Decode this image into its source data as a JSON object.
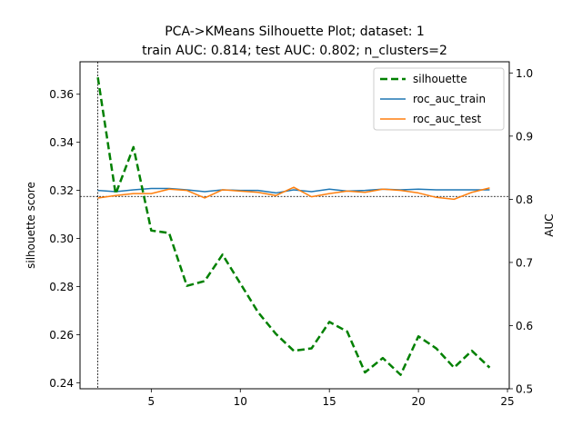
{
  "chart_data": {
    "type": "line",
    "title_lines": [
      "PCA->KMeans Silhouette Plot; dataset: 1",
      "train AUC: 0.814; test AUC: 0.802; n_clusters=2"
    ],
    "xlabel": "",
    "ylabel_left": "silhouette score",
    "ylabel_right": "AUC",
    "xlim": [
      1.0,
      25.1
    ],
    "ylim_left": [
      0.2375,
      0.3735
    ],
    "ylim_right": [
      0.5,
      1.0177
    ],
    "x_ticks": [
      5,
      10,
      15,
      20,
      25
    ],
    "y_ticks_left": [
      0.24,
      0.26,
      0.28,
      0.3,
      0.32,
      0.34,
      0.36
    ],
    "y_ticks_right": [
      0.5,
      0.6,
      0.7,
      0.8,
      0.9,
      1.0
    ],
    "x_tick_labels": [
      "5",
      "10",
      "15",
      "20",
      "25"
    ],
    "y_tick_labels_left": [
      "0.24",
      "0.26",
      "0.28",
      "0.30",
      "0.32",
      "0.34",
      "0.36"
    ],
    "y_tick_labels_right": [
      "0.5",
      "0.6",
      "0.7",
      "0.8",
      "0.9",
      "1.0"
    ],
    "x": [
      2,
      3,
      4,
      5,
      6,
      7,
      8,
      9,
      10,
      11,
      12,
      13,
      14,
      15,
      16,
      17,
      18,
      19,
      20,
      21,
      22,
      23,
      24
    ],
    "series": [
      {
        "name": "silhouette",
        "axis": "left",
        "color": "#008000",
        "style": "dashed",
        "values": [
          0.367,
          0.3185,
          0.338,
          0.3033,
          0.3023,
          0.2803,
          0.2823,
          0.2933,
          0.2813,
          0.2693,
          0.2603,
          0.2533,
          0.2543,
          0.2653,
          0.2613,
          0.2443,
          0.2503,
          0.2433,
          0.2593,
          0.2543,
          0.2463,
          0.2533,
          0.2463
        ]
      },
      {
        "name": "roc_auc_train",
        "axis": "right",
        "color": "#1f77b4",
        "style": "solid",
        "values": [
          0.814,
          0.812,
          0.815,
          0.817,
          0.817,
          0.815,
          0.812,
          0.815,
          0.814,
          0.814,
          0.81,
          0.815,
          0.812,
          0.816,
          0.813,
          0.814,
          0.816,
          0.815,
          0.816,
          0.815,
          0.815,
          0.815,
          0.815
        ]
      },
      {
        "name": "roc_auc_test",
        "axis": "right",
        "color": "#ff7f0e",
        "style": "solid",
        "values": [
          0.802,
          0.806,
          0.809,
          0.809,
          0.816,
          0.814,
          0.802,
          0.815,
          0.813,
          0.811,
          0.806,
          0.819,
          0.804,
          0.809,
          0.813,
          0.811,
          0.816,
          0.814,
          0.81,
          0.803,
          0.8,
          0.811,
          0.818
        ]
      }
    ],
    "reference_lines": {
      "vertical_x": 2,
      "horizontal_left_y": 0.3175
    },
    "legend_position": "top-right",
    "grid": false
  }
}
